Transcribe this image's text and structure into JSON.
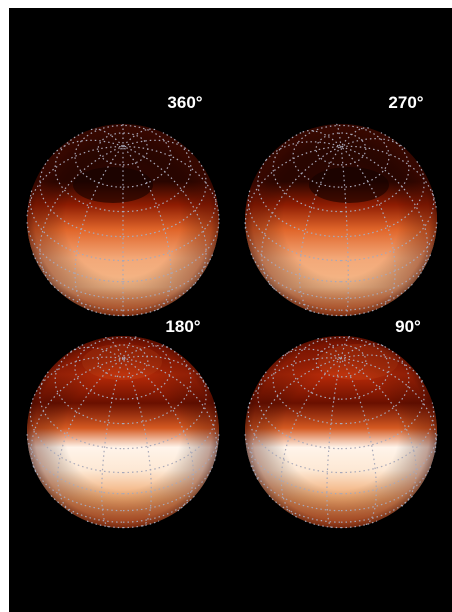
{
  "panels": [
    {
      "label": "360°"
    },
    {
      "label": "270°"
    },
    {
      "label": "180°"
    },
    {
      "label": "90°"
    }
  ]
}
